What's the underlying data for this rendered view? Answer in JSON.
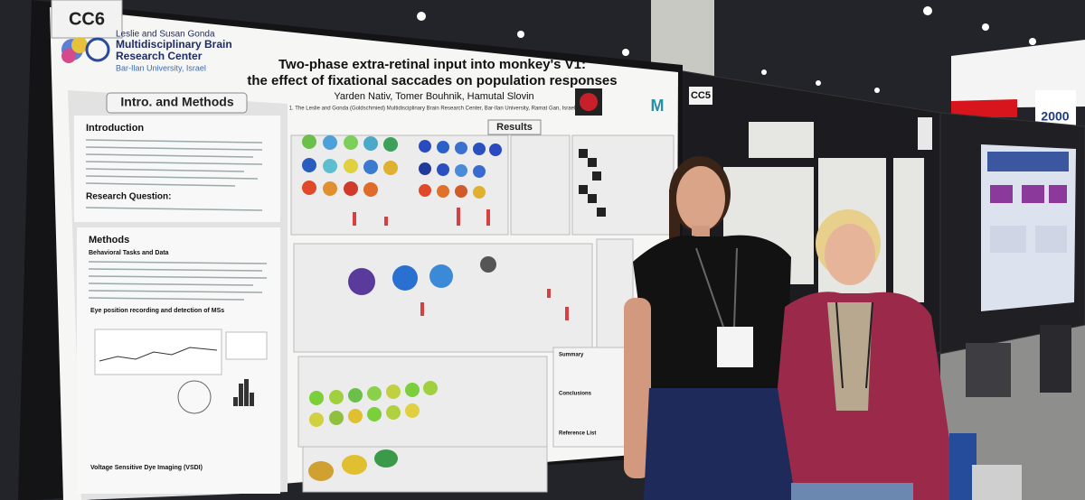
{
  "poster": {
    "board_label": "CC6",
    "institution": [
      "Leslie and Susan Gonda",
      "Multidisciplinary Brain",
      "Research Center",
      "Bar-Ilan University, Israel"
    ],
    "title": [
      "Two-phase extra-retinal input into monkey's V1:",
      "the effect of fixational saccades on population responses"
    ],
    "authors": "Yarden Nativ, Tomer Bouhnik, Hamutal Slovin",
    "affiliation": "1. The Leslie and Gonda (Goldschmied) Multidisciplinary Brain Research Center, Bar-Ilan University, Ramat Gan, Israel",
    "left_header": "Intro. and Methods",
    "introduction": "Introduction",
    "research_question": "Research Question:",
    "methods": "Methods",
    "behavioral": "Behavioral Tasks and Data",
    "eye": "Eye position recording and detection of MSs",
    "vsdi": "Voltage Sensitive Dye Imaging (VSDI)",
    "results": "Results",
    "summary": "Summary",
    "conclusions": "Conclusions",
    "references": "Reference List"
  },
  "neighbor_board": "CC5",
  "banner_number": "2000"
}
